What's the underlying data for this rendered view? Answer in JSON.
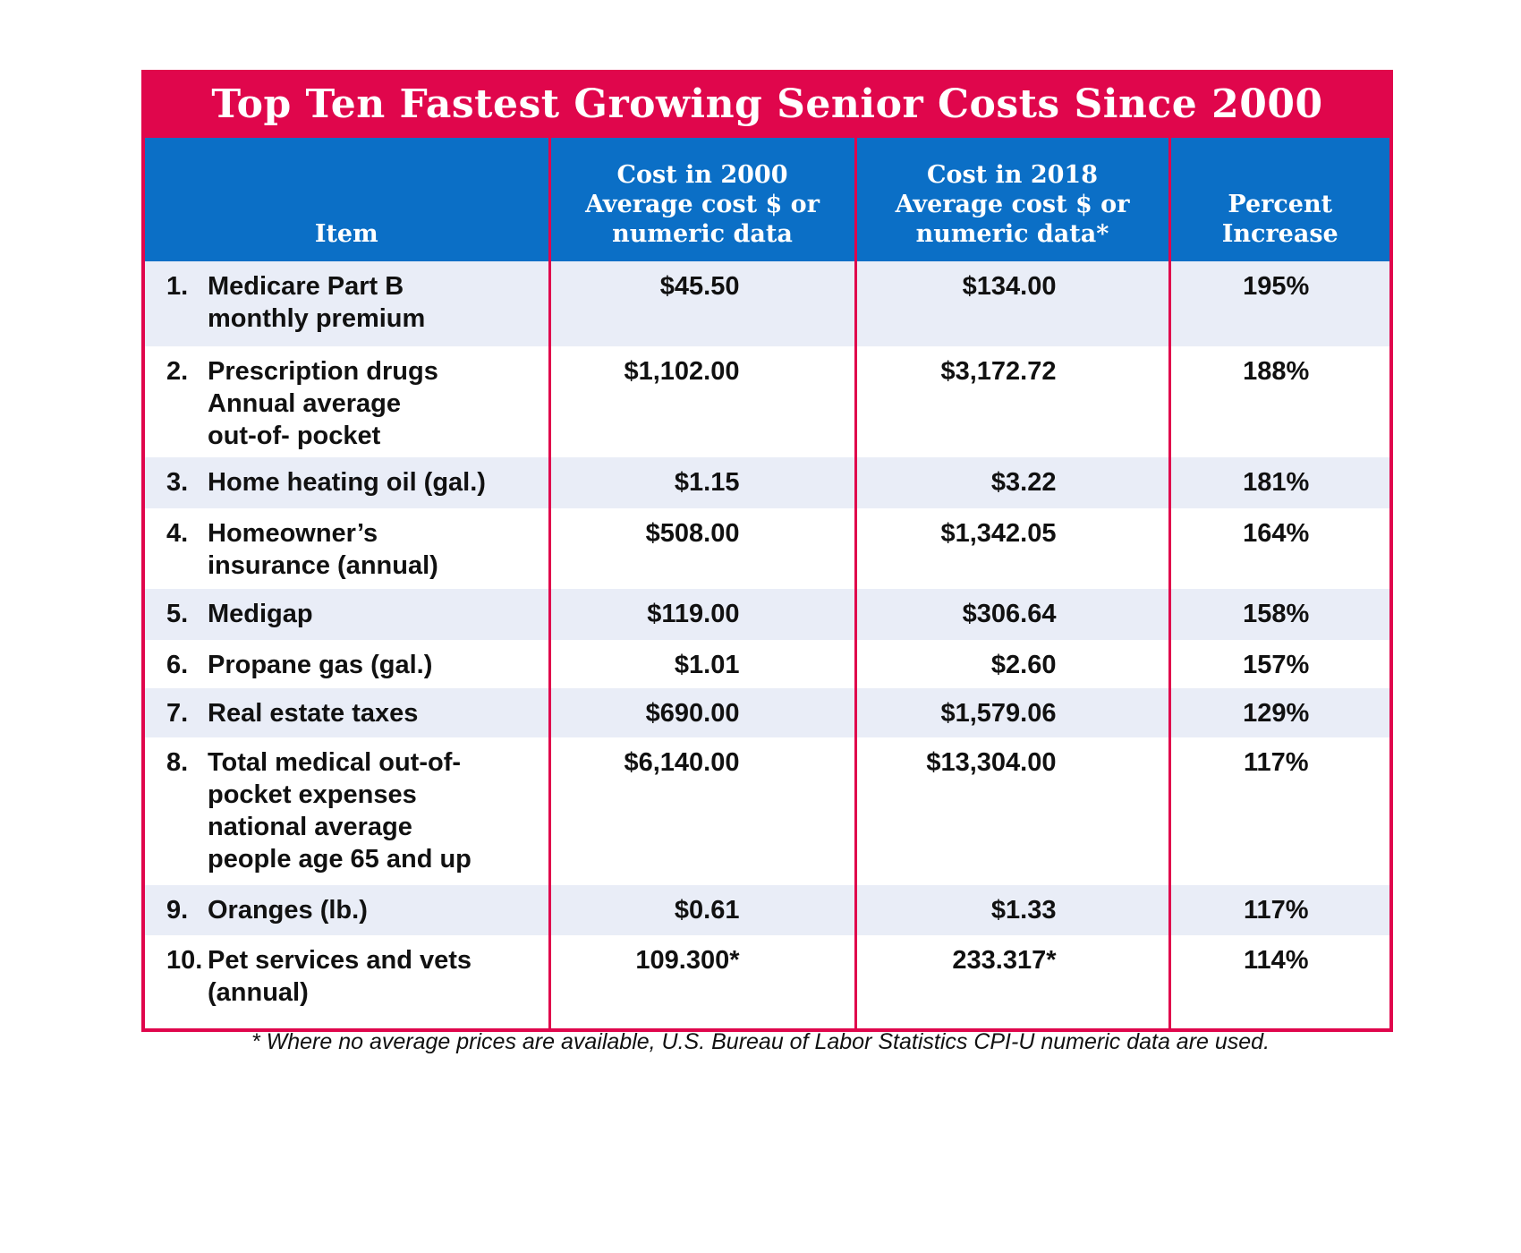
{
  "title": "Top Ten Fastest Growing Senior Costs Since 2000",
  "table": {
    "headers": [
      [
        "Item"
      ],
      [
        "Cost in 2000",
        "Average cost $ or",
        "numeric data"
      ],
      [
        "Cost in 2018",
        "Average cost $ or",
        "numeric data*"
      ],
      [
        "Percent",
        "Increase"
      ]
    ],
    "rows": [
      {
        "number": "1.",
        "item": [
          "Medicare Part B",
          "monthly premium"
        ],
        "cost_2000": "$45.50",
        "cost_2018": "$134.00",
        "increase": "195%"
      },
      {
        "number": "2.",
        "item": [
          "Prescription drugs",
          "Annual average",
          "out-of- pocket"
        ],
        "cost_2000": "$1,102.00",
        "cost_2018": "$3,172.72",
        "increase": "188%"
      },
      {
        "number": "3.",
        "item": [
          "Home heating oil (gal.)"
        ],
        "cost_2000": "$1.15",
        "cost_2018": "$3.22",
        "increase": "181%"
      },
      {
        "number": "4.",
        "item": [
          "Homeowner’s",
          "insurance (annual)"
        ],
        "cost_2000": "$508.00",
        "cost_2018": "$1,342.05",
        "increase": "164%"
      },
      {
        "number": "5.",
        "item": [
          "Medigap"
        ],
        "cost_2000": "$119.00",
        "cost_2018": "$306.64",
        "increase": "158%"
      },
      {
        "number": "6.",
        "item": [
          "Propane gas (gal.)"
        ],
        "cost_2000": "$1.01",
        "cost_2018": "$2.60",
        "increase": "157%"
      },
      {
        "number": "7.",
        "item": [
          "Real estate taxes"
        ],
        "cost_2000": "$690.00",
        "cost_2018": "$1,579.06",
        "increase": "129%"
      },
      {
        "number": "8.",
        "item": [
          "Total medical out-of-",
          "pocket expenses",
          "national average",
          "people age 65 and up"
        ],
        "cost_2000": "$6,140.00",
        "cost_2018": "$13,304.00",
        "increase": "117%"
      },
      {
        "number": "9.",
        "item": [
          "Oranges (lb.)"
        ],
        "cost_2000": "$0.61",
        "cost_2018": "$1.33",
        "increase": "117%"
      },
      {
        "number": "10.",
        "item": [
          "Pet services and vets",
          "(annual)"
        ],
        "cost_2000": "109.300*",
        "cost_2018": "233.317*",
        "increase": "114%"
      }
    ]
  },
  "footnote": "* Where no average prices are available, U.S. Bureau of Labor Statistics CPI-U numeric data are used."
}
